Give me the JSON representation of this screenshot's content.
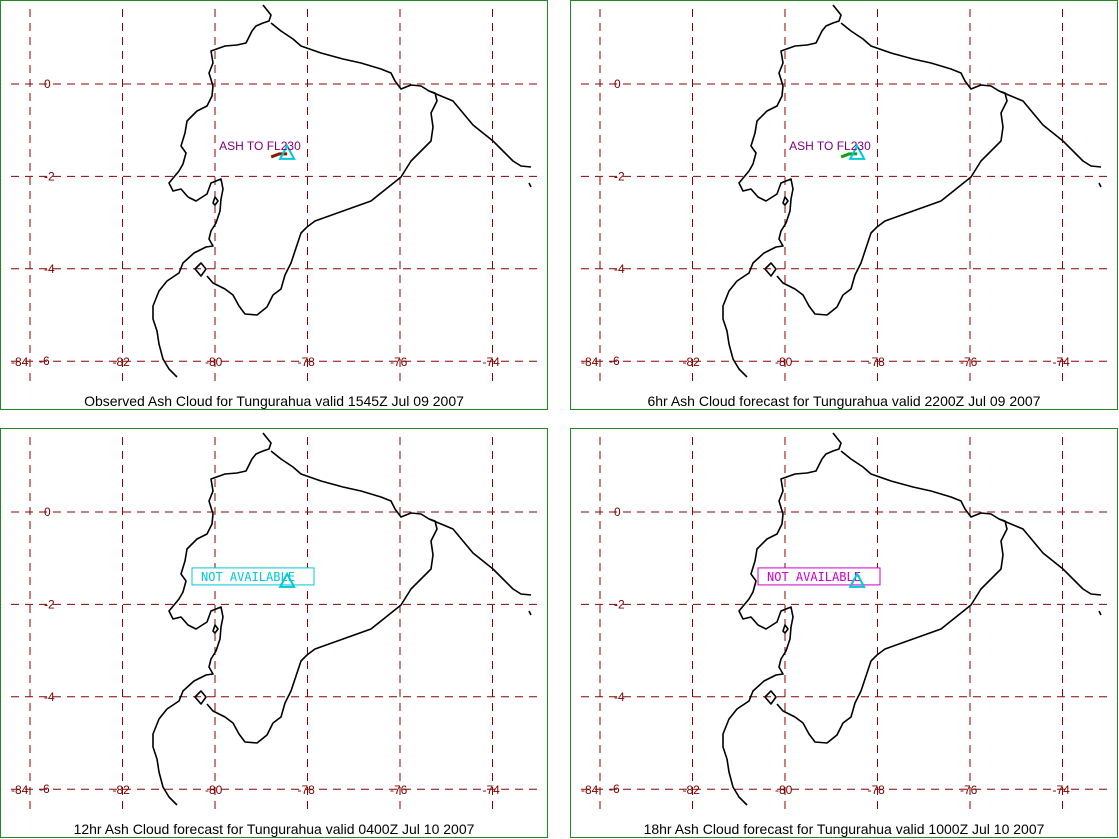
{
  "panels": [
    {
      "caption": "Observed Ash Cloud for Tungurahua valid 1545Z Jul 09 2007",
      "label": "ASH TO FL230",
      "label_color": "#800080",
      "label_kind": "ash",
      "volcano_color": "#00c8d8",
      "plume_color": "#8b1a00"
    },
    {
      "caption": "6hr Ash Cloud forecast for Tungurahua valid 2200Z Jul 09 2007",
      "label": "ASH TO FL230",
      "label_color": "#800080",
      "label_kind": "ash",
      "volcano_color": "#00c8d8",
      "plume_color": "#1a9a1a"
    },
    {
      "caption": "12hr Ash Cloud forecast for Tungurahua valid 0400Z Jul 10 2007",
      "label": "NOT AVAILABLE",
      "label_color": "#00c8d8",
      "label_kind": "na",
      "volcano_color": "#00c8d8"
    },
    {
      "caption": "18hr Ash Cloud forecast for Tungurahua valid 1000Z Jul 10 2007",
      "label": "NOT AVAILABLE",
      "label_color": "#cc00cc",
      "label_kind": "na",
      "volcano_color": "#00c8d8"
    }
  ],
  "axis": {
    "lon_labels": [
      "-84",
      "-82",
      "-80",
      "-78",
      "-76",
      "-74"
    ],
    "lat_labels": [
      "0",
      "-2",
      "-4",
      "-6"
    ]
  },
  "colors": {
    "grid": "#8b0000",
    "border": "#1f8a1f",
    "coast": "#000000"
  },
  "volcano": {
    "name": "Tungurahua",
    "lon": -78.44,
    "lat": -1.47
  }
}
